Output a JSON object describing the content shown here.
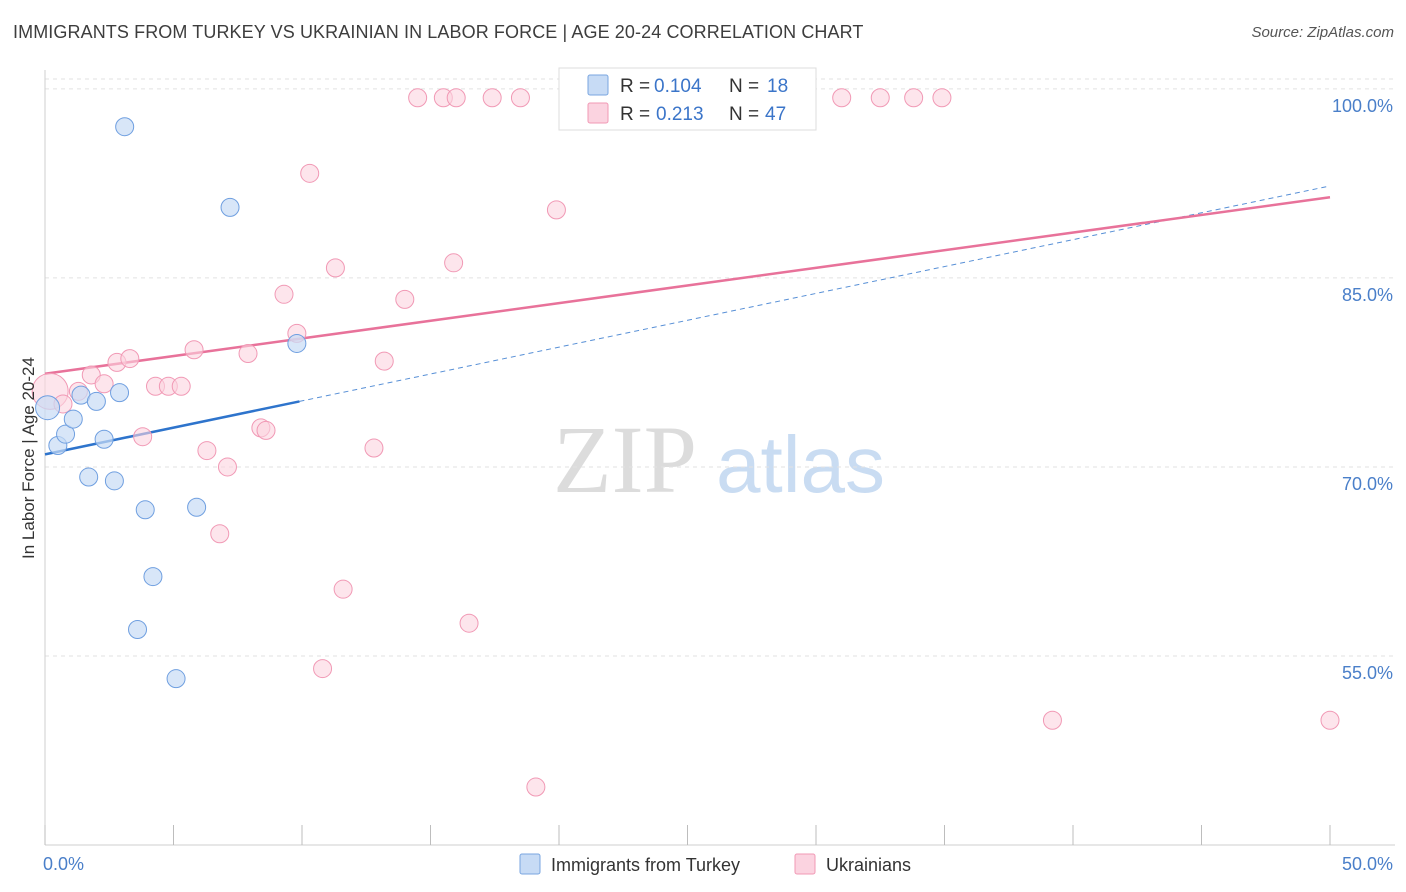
{
  "header": {
    "title": "IMMIGRANTS FROM TURKEY VS UKRAINIAN IN LABOR FORCE | AGE 20-24 CORRELATION CHART",
    "source": "Source: ZipAtlas.com"
  },
  "watermark": {
    "zip": "ZIP",
    "atlas": "atlas"
  },
  "legend": {
    "r_label": "R =",
    "n_label": "N =",
    "entries": [
      {
        "r": "0.104",
        "n": "18",
        "color": "#a9c8f0"
      },
      {
        "r": "0.213",
        "n": "47",
        "color": "#f7b8cb"
      }
    ]
  },
  "bottom_legend": [
    {
      "label": "Immigrants from Turkey",
      "color": "#a9c8f0"
    },
    {
      "label": "Ukrainians",
      "color": "#f7b8cb"
    }
  ],
  "chart_data": {
    "type": "scatter",
    "title": "IMMIGRANTS FROM TURKEY VS UKRAINIAN IN LABOR FORCE | AGE 20-24 CORRELATION CHART",
    "xlabel": "",
    "ylabel": "In Labor Force | Age 20-24",
    "xlim": [
      0,
      50
    ],
    "ylim": [
      40,
      101.5
    ],
    "x_tick_labels": [
      "0.0%",
      "50.0%"
    ],
    "y_ticks": [
      55,
      70,
      85,
      100
    ],
    "y_tick_labels": [
      "55.0%",
      "70.0%",
      "85.0%",
      "100.0%"
    ],
    "grid": true,
    "colors": {
      "turkey": "#6f9fe0",
      "turkey_fill": "#c7dbf5",
      "ukr": "#f199b5",
      "ukr_fill": "#fbd3e0",
      "turkey_line": "#2e74cc",
      "ukr_line": "#e8729a"
    },
    "series": [
      {
        "name": "Immigrants from Turkey",
        "points": [
          [
            0.1,
            74.7,
            12
          ],
          [
            0.5,
            71.7,
            9
          ],
          [
            0.8,
            72.6,
            9
          ],
          [
            1.1,
            73.8,
            9
          ],
          [
            1.4,
            75.7,
            9
          ],
          [
            1.7,
            69.2,
            9
          ],
          [
            2.0,
            75.2,
            9
          ],
          [
            2.3,
            72.2,
            9
          ],
          [
            2.7,
            68.9,
            9
          ],
          [
            2.9,
            75.9,
            9
          ],
          [
            3.1,
            97.0,
            9
          ],
          [
            3.6,
            57.1,
            9
          ],
          [
            3.9,
            66.6,
            9
          ],
          [
            4.2,
            61.3,
            9
          ],
          [
            5.1,
            53.2,
            9
          ],
          [
            5.9,
            66.8,
            9
          ],
          [
            7.2,
            90.6,
            9
          ],
          [
            9.8,
            79.8,
            9
          ]
        ],
        "trend": {
          "x0": 0,
          "y0": 71.0,
          "x1": 9.9,
          "y1": 75.2,
          "dash_to_x": 50,
          "dash_to_y": 92.3
        }
      },
      {
        "name": "Ukrainians",
        "points": [
          [
            0.2,
            76.0,
            18
          ],
          [
            0.7,
            75.0,
            9
          ],
          [
            1.3,
            76.0,
            9
          ],
          [
            1.8,
            77.3,
            9
          ],
          [
            2.3,
            76.6,
            9
          ],
          [
            2.8,
            78.3,
            9
          ],
          [
            3.3,
            78.6,
            9
          ],
          [
            3.8,
            72.4,
            9
          ],
          [
            4.3,
            76.4,
            9
          ],
          [
            4.8,
            76.4,
            9
          ],
          [
            5.3,
            76.4,
            9
          ],
          [
            5.8,
            79.3,
            9
          ],
          [
            6.3,
            71.3,
            9
          ],
          [
            6.8,
            64.7,
            9
          ],
          [
            7.1,
            70.0,
            9
          ],
          [
            7.9,
            79.0,
            9
          ],
          [
            8.4,
            73.1,
            9
          ],
          [
            8.6,
            72.9,
            9
          ],
          [
            9.3,
            83.7,
            9
          ],
          [
            9.8,
            80.6,
            9
          ],
          [
            10.3,
            93.3,
            9
          ],
          [
            10.8,
            54.0,
            9
          ],
          [
            11.6,
            60.3,
            9
          ],
          [
            11.3,
            85.8,
            9
          ],
          [
            12.8,
            71.5,
            9
          ],
          [
            13.2,
            78.4,
            9
          ],
          [
            14.0,
            83.3,
            9
          ],
          [
            14.5,
            99.3,
            9
          ],
          [
            15.5,
            99.3,
            9
          ],
          [
            15.9,
            86.2,
            9
          ],
          [
            16.0,
            99.3,
            9
          ],
          [
            16.5,
            57.6,
            9
          ],
          [
            17.4,
            99.3,
            9
          ],
          [
            18.5,
            99.3,
            9
          ],
          [
            19.1,
            44.6,
            9
          ],
          [
            19.9,
            90.4,
            9
          ],
          [
            21.0,
            99.3,
            9
          ],
          [
            22.2,
            99.3,
            9
          ],
          [
            23.0,
            99.3,
            9
          ],
          [
            25.1,
            99.3,
            9
          ],
          [
            29.5,
            99.3,
            9
          ],
          [
            31.0,
            99.3,
            9
          ],
          [
            32.5,
            99.3,
            9
          ],
          [
            33.8,
            99.3,
            9
          ],
          [
            34.9,
            99.3,
            9
          ],
          [
            39.2,
            49.9,
            9
          ],
          [
            50.0,
            49.9,
            9
          ]
        ],
        "trend": {
          "x0": 0,
          "y0": 77.4,
          "x1": 50,
          "y1": 91.4
        }
      }
    ]
  }
}
